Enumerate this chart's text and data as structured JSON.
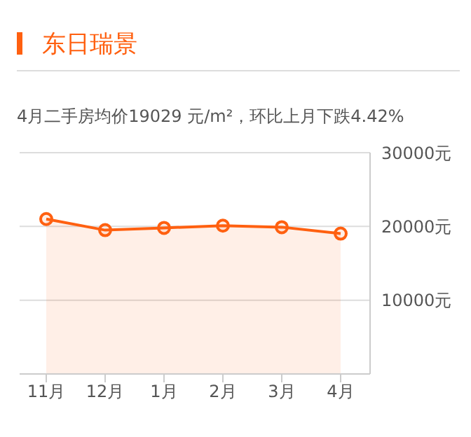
{
  "chart_data": {
    "type": "area",
    "title": "东日瑞景",
    "subtitle": "4月二手房均价19029 元/m²，环比上月下跌4.42%",
    "categories": [
      "11月",
      "12月",
      "1月",
      "2月",
      "3月",
      "4月"
    ],
    "series": [
      {
        "color": "#ff6010",
        "values": [
          21000,
          19500,
          19800,
          20100,
          19900,
          19029
        ]
      }
    ],
    "ylim": [
      0,
      30000
    ],
    "yticks": [
      {
        "value": 10000,
        "label": "10000元"
      },
      {
        "value": 20000,
        "label": "20000元"
      },
      {
        "value": 30000,
        "label": "30000元"
      }
    ],
    "grid": "y",
    "marker": "circle"
  }
}
